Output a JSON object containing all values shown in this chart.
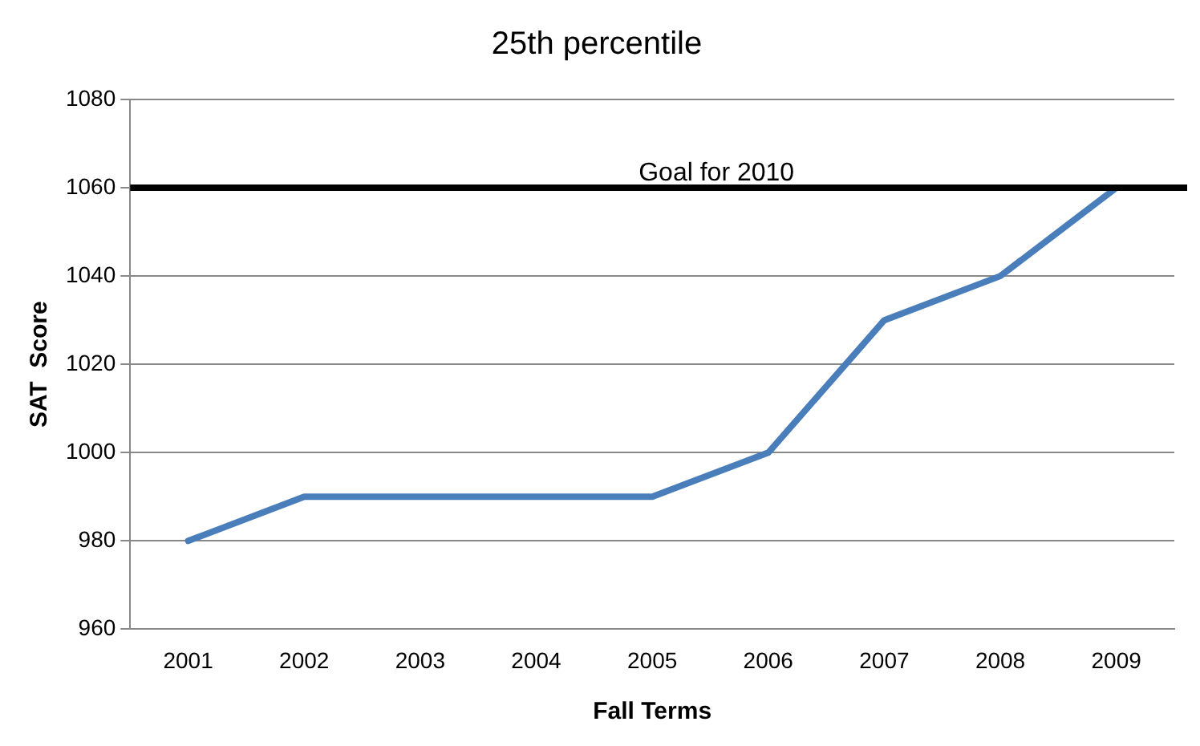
{
  "chart_data": {
    "type": "line",
    "title": "25th percentile",
    "xlabel": "Fall Terms",
    "ylabel": "SAT  Score",
    "categories": [
      "2001",
      "2002",
      "2003",
      "2004",
      "2005",
      "2006",
      "2007",
      "2008",
      "2009"
    ],
    "series": [
      {
        "color": "#4a7ebb",
        "values": [
          980,
          990,
          990,
          990,
          990,
          1000,
          1030,
          1040,
          1060
        ]
      }
    ],
    "ylim": [
      960,
      1080
    ],
    "yticks": [
      960,
      980,
      1000,
      1020,
      1040,
      1060,
      1080
    ],
    "grid": "y",
    "legend": false,
    "marker": "none",
    "line_style": "solid",
    "ref_lines": [
      {
        "axis": "y",
        "value": 1060,
        "label": "Goal for 2010",
        "color": "#000000",
        "line_style": "solid"
      }
    ]
  }
}
